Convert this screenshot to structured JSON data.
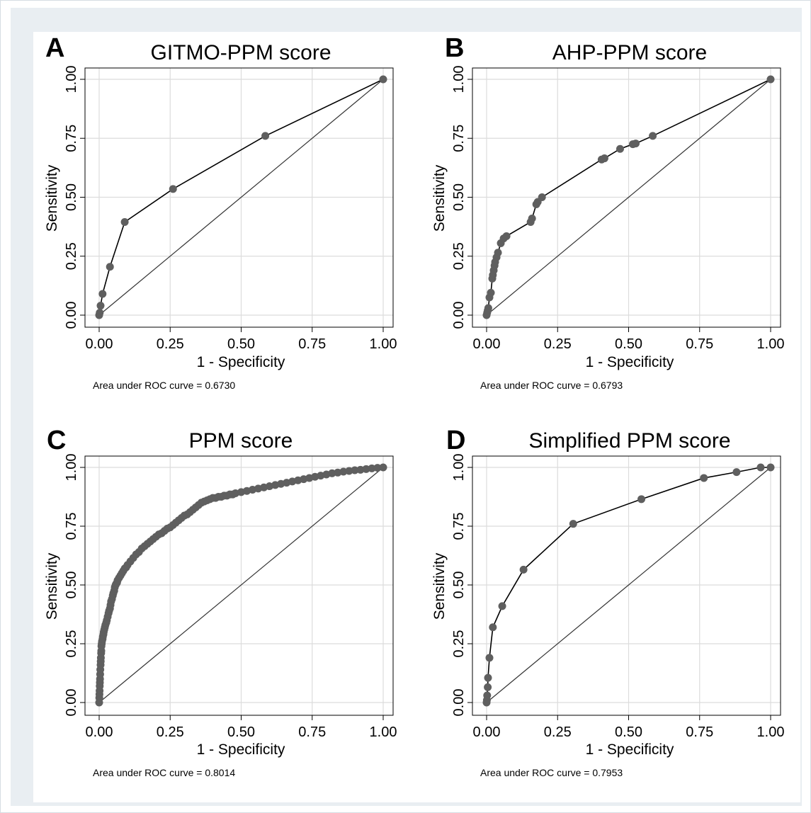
{
  "chart_data": [
    {
      "panel_letter": "A",
      "type": "line",
      "title": "GITMO-PPM score",
      "xlabel": "1 - Specificity",
      "ylabel": "Sensitivity",
      "xlim": [
        0,
        1
      ],
      "ylim": [
        0,
        1
      ],
      "x_ticks": [
        "0.00",
        "0.25",
        "0.50",
        "0.75",
        "1.00"
      ],
      "y_ticks": [
        "0.00",
        "0.25",
        "0.50",
        "0.75",
        "1.00"
      ],
      "grid": true,
      "reference_line": true,
      "auc_text": "Area under ROC curve = 0.6730",
      "x": [
        0,
        0.002,
        0.005,
        0.012,
        0.038,
        0.09,
        0.26,
        0.585,
        1.0
      ],
      "y": [
        0,
        0.01,
        0.04,
        0.09,
        0.205,
        0.395,
        0.535,
        0.76,
        1.0
      ]
    },
    {
      "panel_letter": "B",
      "type": "line",
      "title": "AHP-PPM score",
      "xlabel": "1 - Specificity",
      "ylabel": "Sensitivity",
      "xlim": [
        0,
        1
      ],
      "ylim": [
        0,
        1
      ],
      "x_ticks": [
        "0.00",
        "0.25",
        "0.50",
        "0.75",
        "1.00"
      ],
      "y_ticks": [
        "0.00",
        "0.25",
        "0.50",
        "0.75",
        "1.00"
      ],
      "grid": true,
      "reference_line": true,
      "auc_text": "Area under ROC curve = 0.6793",
      "x": [
        0,
        0.002,
        0.004,
        0.006,
        0.01,
        0.015,
        0.02,
        0.022,
        0.025,
        0.028,
        0.03,
        0.035,
        0.04,
        0.05,
        0.06,
        0.07,
        0.155,
        0.16,
        0.175,
        0.18,
        0.195,
        0.405,
        0.415,
        0.47,
        0.515,
        0.525,
        0.585,
        1.0
      ],
      "y": [
        0,
        0.01,
        0.02,
        0.03,
        0.075,
        0.095,
        0.155,
        0.17,
        0.19,
        0.21,
        0.225,
        0.245,
        0.265,
        0.305,
        0.325,
        0.335,
        0.395,
        0.41,
        0.47,
        0.48,
        0.5,
        0.66,
        0.665,
        0.705,
        0.725,
        0.728,
        0.76,
        1.0
      ]
    },
    {
      "panel_letter": "C",
      "type": "line",
      "title": "PPM score",
      "xlabel": "1 - Specificity",
      "ylabel": "Sensitivity",
      "xlim": [
        0,
        1
      ],
      "ylim": [
        0,
        1
      ],
      "x_ticks": [
        "0.00",
        "0.25",
        "0.50",
        "0.75",
        "1.00"
      ],
      "y_ticks": [
        "0.00",
        "0.25",
        "0.50",
        "0.75",
        "1.00"
      ],
      "grid": true,
      "reference_line": true,
      "auc_text": "Area under ROC curve = 0.8014",
      "x": [
        0,
        0.0005,
        0.001,
        0.0015,
        0.002,
        0.0025,
        0.003,
        0.0035,
        0.004,
        0.005,
        0.0055,
        0.006,
        0.007,
        0.0075,
        0.008,
        0.009,
        0.01,
        0.012,
        0.013,
        0.015,
        0.016,
        0.018,
        0.02,
        0.022,
        0.025,
        0.027,
        0.03,
        0.033,
        0.035,
        0.038,
        0.04,
        0.042,
        0.045,
        0.048,
        0.05,
        0.053,
        0.055,
        0.058,
        0.06,
        0.063,
        0.065,
        0.07,
        0.075,
        0.08,
        0.085,
        0.09,
        0.095,
        0.1,
        0.11,
        0.12,
        0.13,
        0.14,
        0.15,
        0.16,
        0.17,
        0.18,
        0.19,
        0.2,
        0.21,
        0.22,
        0.23,
        0.24,
        0.25,
        0.26,
        0.27,
        0.28,
        0.29,
        0.3,
        0.31,
        0.32,
        0.33,
        0.34,
        0.35,
        0.36,
        0.37,
        0.38,
        0.39,
        0.4,
        0.41,
        0.42,
        0.43,
        0.44,
        0.45,
        0.46,
        0.47,
        0.48,
        0.5,
        0.52,
        0.54,
        0.56,
        0.58,
        0.6,
        0.62,
        0.64,
        0.66,
        0.68,
        0.7,
        0.72,
        0.74,
        0.76,
        0.78,
        0.8,
        0.82,
        0.84,
        0.86,
        0.88,
        0.9,
        0.92,
        0.94,
        0.96,
        0.98,
        1.0
      ],
      "y": [
        0,
        0.02,
        0.035,
        0.05,
        0.07,
        0.085,
        0.1,
        0.12,
        0.14,
        0.16,
        0.175,
        0.19,
        0.21,
        0.22,
        0.24,
        0.25,
        0.26,
        0.27,
        0.28,
        0.29,
        0.3,
        0.31,
        0.32,
        0.33,
        0.34,
        0.35,
        0.365,
        0.38,
        0.39,
        0.4,
        0.415,
        0.43,
        0.44,
        0.455,
        0.465,
        0.475,
        0.49,
        0.5,
        0.505,
        0.51,
        0.52,
        0.53,
        0.54,
        0.55,
        0.56,
        0.57,
        0.575,
        0.585,
        0.6,
        0.615,
        0.63,
        0.64,
        0.655,
        0.665,
        0.675,
        0.685,
        0.695,
        0.705,
        0.715,
        0.72,
        0.73,
        0.74,
        0.745,
        0.755,
        0.765,
        0.775,
        0.785,
        0.795,
        0.8,
        0.81,
        0.82,
        0.83,
        0.84,
        0.85,
        0.855,
        0.86,
        0.865,
        0.87,
        0.87,
        0.875,
        0.875,
        0.88,
        0.88,
        0.885,
        0.885,
        0.89,
        0.895,
        0.9,
        0.905,
        0.91,
        0.915,
        0.92,
        0.925,
        0.93,
        0.935,
        0.94,
        0.945,
        0.95,
        0.955,
        0.96,
        0.965,
        0.97,
        0.975,
        0.978,
        0.982,
        0.985,
        0.988,
        0.99,
        0.993,
        0.996,
        0.998,
        1.0
      ]
    },
    {
      "panel_letter": "D",
      "type": "line",
      "title": "Simplified PPM score",
      "xlabel": "1 - Specificity",
      "ylabel": "Sensitivity",
      "xlim": [
        0,
        1
      ],
      "ylim": [
        0,
        1
      ],
      "x_ticks": [
        "0.00",
        "0.25",
        "0.50",
        "0.75",
        "1.00"
      ],
      "y_ticks": [
        "0.00",
        "0.25",
        "0.50",
        "0.75",
        "1.00"
      ],
      "grid": true,
      "reference_line": true,
      "auc_text": "Area under ROC curve = 0.7953",
      "x": [
        0,
        0.001,
        0.002,
        0.004,
        0.005,
        0.01,
        0.022,
        0.055,
        0.13,
        0.305,
        0.545,
        0.765,
        0.88,
        0.965,
        1.0
      ],
      "y": [
        0,
        0.01,
        0.03,
        0.065,
        0.105,
        0.19,
        0.32,
        0.41,
        0.565,
        0.76,
        0.865,
        0.955,
        0.98,
        1.0,
        1.0
      ]
    }
  ]
}
